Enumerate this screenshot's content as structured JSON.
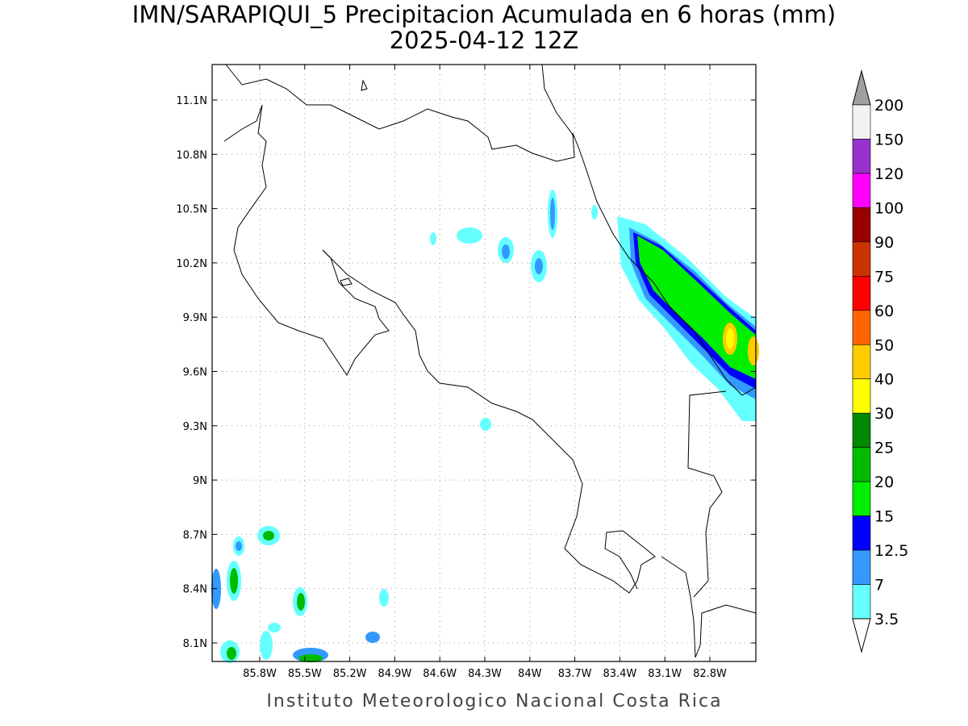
{
  "header": {
    "title": "IMN/SARAPIQUI_5 Precipitacion Acumulada en 6 horas (mm)",
    "subtitle": "2025-04-12 12Z"
  },
  "map": {
    "lat_labels": [
      "11.1N",
      "10.8N",
      "10.5N",
      "10.2N",
      "9.9N",
      "9.6N",
      "9.3N",
      "9N",
      "8.7N",
      "8.4N",
      "8.1N"
    ],
    "lon_labels": [
      "85.8W",
      "85.5W",
      "85.2W",
      "84.9W",
      "84.6W",
      "84.3W",
      "84W",
      "83.7W",
      "83.4W",
      "83.1W",
      "82.8W"
    ],
    "grid": true
  },
  "colorbar": {
    "labels": [
      "200",
      "150",
      "120",
      "100",
      "90",
      "75",
      "60",
      "50",
      "40",
      "30",
      "25",
      "20",
      "15",
      "12.5",
      "7",
      "3.5"
    ],
    "colors": [
      "#f2f2f2",
      "#9932cc",
      "#ff00ff",
      "#990000",
      "#cc3300",
      "#ff0000",
      "#ff6600",
      "#ffcc00",
      "#ffff00",
      "#008800",
      "#00bb00",
      "#00ee00",
      "#0000ff",
      "#3399ff",
      "#66ffff"
    ],
    "over_color": "#a0a0a0",
    "under_color": "#ffffff"
  },
  "footer": "Instituto Meteorologico Nacional Costa Rica"
}
